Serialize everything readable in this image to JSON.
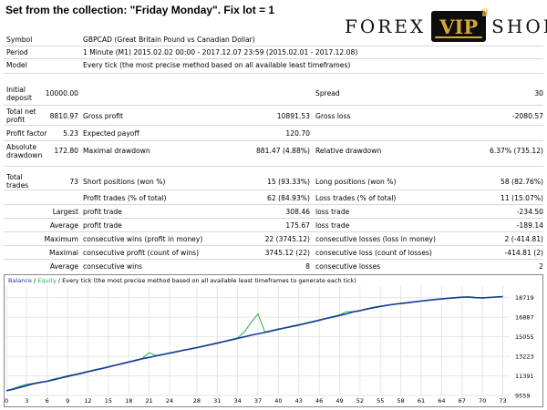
{
  "header": {
    "title": "Set from the collection: \"Friday Monday\".   Fix lot = 1"
  },
  "logo": {
    "left": "FOREX",
    "center": "VIP",
    "right": "SHOP"
  },
  "info": [
    {
      "label": "Symbol",
      "value": "GBPCAD (Great Britain Pound vs Canadian Dollar)"
    },
    {
      "label": "Period",
      "value": "1 Minute (M1) 2015.02.02 00:00 - 2017.12.07 23:59 (2015.02.01 - 2017.12.08)"
    },
    {
      "label": "Model",
      "value": "Every tick (the most precise method based on all available least timeframes)"
    }
  ],
  "stats": {
    "initial_deposit": {
      "label": "Initial deposit",
      "value": "10000.00"
    },
    "spread": {
      "label": "Spread",
      "value": "30"
    },
    "total_net_profit": {
      "label": "Total net profit",
      "value": "8810.97"
    },
    "gross_profit": {
      "label": "Gross profit",
      "value": "10891.53"
    },
    "gross_loss": {
      "label": "Gross loss",
      "value": "-2080.57"
    },
    "profit_factor": {
      "label": "Profit factor",
      "value": "5.23"
    },
    "expected_payoff": {
      "label": "Expected payoff",
      "value": "120.70"
    },
    "absolute_drawdown": {
      "label": "Absolute drawdown",
      "value": "172.80"
    },
    "maximal_drawdown": {
      "label": "Maximal drawdown",
      "value": "881.47 (4.88%)"
    },
    "relative_drawdown": {
      "label": "Relative drawdown",
      "value": "6.37% (735.12)"
    },
    "total_trades": {
      "label": "Total trades",
      "value": "73"
    },
    "short_positions": {
      "label": "Short positions (won %)",
      "value": "15 (93.33%)"
    },
    "long_positions": {
      "label": "Long positions (won %)",
      "value": "58 (82.76%)"
    },
    "profit_trades": {
      "label": "Profit trades (% of total)",
      "value": "62 (84.93%)"
    },
    "loss_trades": {
      "label": "Loss trades (% of total)",
      "value": "11 (15.07%)"
    },
    "largest_label": "Largest",
    "largest_profit": {
      "label": "profit trade",
      "value": "308.46"
    },
    "largest_loss": {
      "label": "loss trade",
      "value": "-234.50"
    },
    "average_label": "Average",
    "average_profit": {
      "label": "profit trade",
      "value": "175.67"
    },
    "average_loss": {
      "label": "loss trade",
      "value": "-189.14"
    },
    "maximum_label": "Maximum",
    "max_cons_wins": {
      "label": "consecutive wins (profit in money)",
      "value": "22 (3745.12)"
    },
    "max_cons_losses": {
      "label": "consecutive losses (loss in money)",
      "value": "2 (-414.81)"
    },
    "maximal_label": "Maximal",
    "maximal_cons_profit": {
      "label": "consecutive profit (count of wins)",
      "value": "3745.12 (22)"
    },
    "maximal_cons_loss": {
      "label": "consecutive loss (count of losses)",
      "value": "-414.81 (2)"
    },
    "average2_label": "Average",
    "avg_cons_wins": {
      "label": "consecutive wins",
      "value": "8"
    },
    "avg_cons_losses": {
      "label": "consecutive losses",
      "value": "2"
    }
  },
  "chart_data": {
    "type": "line",
    "legend": {
      "balance": "Balance",
      "sep1": " / ",
      "equity": "Equity",
      "rest": " / Every tick (the most precise method based on all available least timeframes to generate each tick)"
    },
    "colors": {
      "balance": "#1a3a9c",
      "equity": "#22b14c",
      "grid": "#e6e6e6"
    },
    "x_ticks": [
      0,
      3,
      6,
      9,
      12,
      15,
      18,
      21,
      24,
      28,
      31,
      34,
      37,
      40,
      43,
      46,
      49,
      52,
      55,
      58,
      61,
      64,
      67,
      70,
      73
    ],
    "y_ticks": [
      9559,
      11391,
      13223,
      15055,
      16887,
      18719
    ],
    "xlim": [
      0,
      74
    ],
    "ylim": [
      9559,
      19800
    ],
    "series": [
      {
        "key": "balance",
        "x": [
          0,
          1,
          2,
          3,
          4,
          5,
          6,
          7,
          8,
          9,
          10,
          11,
          12,
          13,
          14,
          15,
          16,
          17,
          18,
          19,
          20,
          21,
          22,
          23,
          24,
          25,
          26,
          27,
          28,
          29,
          30,
          31,
          32,
          33,
          34,
          35,
          36,
          37,
          38,
          39,
          40,
          41,
          42,
          43,
          44,
          45,
          46,
          47,
          48,
          49,
          50,
          51,
          52,
          53,
          54,
          55,
          56,
          57,
          58,
          59,
          60,
          61,
          62,
          63,
          64,
          65,
          66,
          67,
          68,
          69,
          70,
          71,
          72,
          73
        ],
        "y": [
          10000,
          10140,
          10310,
          10480,
          10650,
          10780,
          10880,
          11020,
          11190,
          11330,
          11480,
          11620,
          11780,
          11930,
          12070,
          12210,
          12380,
          12530,
          12690,
          12830,
          13000,
          13120,
          13260,
          13390,
          13520,
          13650,
          13780,
          13900,
          14030,
          14170,
          14310,
          14450,
          14600,
          14750,
          14900,
          15050,
          15200,
          15330,
          15460,
          15600,
          15750,
          15880,
          16020,
          16150,
          16300,
          16450,
          16600,
          16760,
          16900,
          17050,
          17200,
          17380,
          17500,
          17650,
          17780,
          17900,
          18000,
          18090,
          18170,
          18240,
          18320,
          18400,
          18470,
          18540,
          18600,
          18660,
          18710,
          18760,
          18780,
          18720,
          18700,
          18730,
          18780,
          18810
        ]
      },
      {
        "key": "equity",
        "x": [
          0,
          1,
          2,
          3,
          4,
          5,
          6,
          7,
          8,
          9,
          10,
          11,
          12,
          13,
          14,
          15,
          16,
          17,
          18,
          19,
          20,
          21,
          22,
          23,
          24,
          25,
          26,
          27,
          28,
          29,
          30,
          31,
          32,
          33,
          34,
          35,
          36,
          37,
          38,
          39,
          40,
          41,
          42,
          43,
          44,
          45,
          46,
          47,
          48,
          49,
          50,
          51,
          52,
          53,
          54,
          55,
          56,
          57,
          58,
          59,
          60,
          61,
          62,
          63,
          64,
          65,
          66,
          67,
          68,
          69,
          70,
          71,
          72,
          73
        ],
        "y": [
          10000,
          10200,
          10420,
          10600,
          10700,
          10820,
          10920,
          11100,
          11230,
          11420,
          11530,
          11680,
          11820,
          11970,
          12110,
          12270,
          12420,
          12570,
          12710,
          12880,
          13030,
          13550,
          13300,
          13420,
          13560,
          13690,
          13820,
          13940,
          14070,
          14210,
          14350,
          14500,
          14640,
          14800,
          14950,
          15500,
          16400,
          17200,
          15500,
          15640,
          15800,
          15920,
          16070,
          16200,
          16340,
          16500,
          16640,
          16800,
          16950,
          17100,
          17400,
          17420,
          17530,
          17680,
          17810,
          17930,
          18020,
          18120,
          18200,
          18270,
          18340,
          18420,
          18490,
          18560,
          18620,
          18680,
          18730,
          18780,
          18800,
          18740,
          18720,
          18760,
          18800,
          18830
        ]
      }
    ]
  }
}
